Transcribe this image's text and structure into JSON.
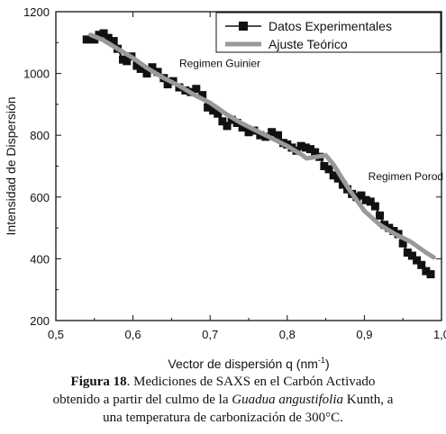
{
  "chart_data": {
    "type": "line",
    "xlabel": "Vector de dispersión q (nm",
    "xlabel_sup": "-1",
    "xlabel_close": ")",
    "ylabel": "Intensidad de Dispersión",
    "xlim": [
      0.5,
      1.0
    ],
    "ylim": [
      200,
      1200
    ],
    "xticks": [
      "0,5",
      "0,6",
      "0,7",
      "0,8",
      "0,9",
      "1,0"
    ],
    "yticks": [
      "200",
      "400",
      "600",
      "800",
      "1000",
      "1200"
    ],
    "grid": false,
    "legend_position": "top-right",
    "annotations": [
      {
        "text": "Regimen Guinier",
        "x": 0.66,
        "y": 1020
      },
      {
        "text": "Regimen Porod",
        "x": 0.905,
        "y": 655
      }
    ],
    "series": [
      {
        "name": "Datos Experimentales",
        "style": "markers",
        "color": "#111111",
        "x": [
          0.54,
          0.55,
          0.556,
          0.562,
          0.568,
          0.575,
          0.58,
          0.587,
          0.592,
          0.598,
          0.605,
          0.61,
          0.618,
          0.625,
          0.632,
          0.64,
          0.645,
          0.652,
          0.66,
          0.668,
          0.675,
          0.682,
          0.69,
          0.697,
          0.704,
          0.71,
          0.716,
          0.722,
          0.728,
          0.735,
          0.742,
          0.75,
          0.757,
          0.765,
          0.772,
          0.78,
          0.788,
          0.795,
          0.8,
          0.806,
          0.812,
          0.818,
          0.824,
          0.83,
          0.836,
          0.842,
          0.848,
          0.854,
          0.86,
          0.866,
          0.872,
          0.878,
          0.884,
          0.89,
          0.896,
          0.902,
          0.908,
          0.914,
          0.92,
          0.926,
          0.932,
          0.938,
          0.944,
          0.95,
          0.956,
          0.962,
          0.968,
          0.974,
          0.98,
          0.986
        ],
        "y": [
          1110,
          1110,
          1125,
          1130,
          1115,
          1105,
          1080,
          1045,
          1040,
          1055,
          1025,
          1015,
          1000,
          1020,
          1005,
          985,
          965,
          975,
          955,
          945,
          940,
          950,
          930,
          890,
          880,
          870,
          845,
          830,
          850,
          840,
          825,
          810,
          815,
          800,
          795,
          810,
          800,
          775,
          770,
          760,
          750,
          765,
          760,
          755,
          745,
          730,
          700,
          690,
          670,
          660,
          640,
          625,
          610,
          600,
          605,
          590,
          585,
          570,
          540,
          510,
          500,
          490,
          480,
          450,
          420,
          410,
          395,
          380,
          360,
          350
        ]
      },
      {
        "name": "Ajuste Teórico",
        "style": "line",
        "color": "#999999",
        "x": [
          0.545,
          0.56,
          0.58,
          0.6,
          0.62,
          0.64,
          0.66,
          0.68,
          0.7,
          0.72,
          0.74,
          0.76,
          0.78,
          0.8,
          0.82,
          0.825,
          0.85,
          0.86,
          0.87,
          0.88,
          0.9,
          0.92,
          0.94,
          0.96,
          0.98,
          0.99
        ],
        "y": [
          1125,
          1110,
          1080,
          1050,
          1015,
          985,
          960,
          930,
          905,
          870,
          840,
          815,
          790,
          765,
          735,
          725,
          735,
          705,
          665,
          625,
          555,
          510,
          480,
          455,
          420,
          405
        ]
      }
    ]
  },
  "caption": {
    "label": "Figura 18",
    "text1": ". Mediciones de SAXS en el Carbón Activado",
    "text2": "obtenido a partir del culmo de la ",
    "species": "Guadua angustifolia",
    "text3": " Kunth, a",
    "text4": "una temperatura de carbonización de 300°C."
  }
}
